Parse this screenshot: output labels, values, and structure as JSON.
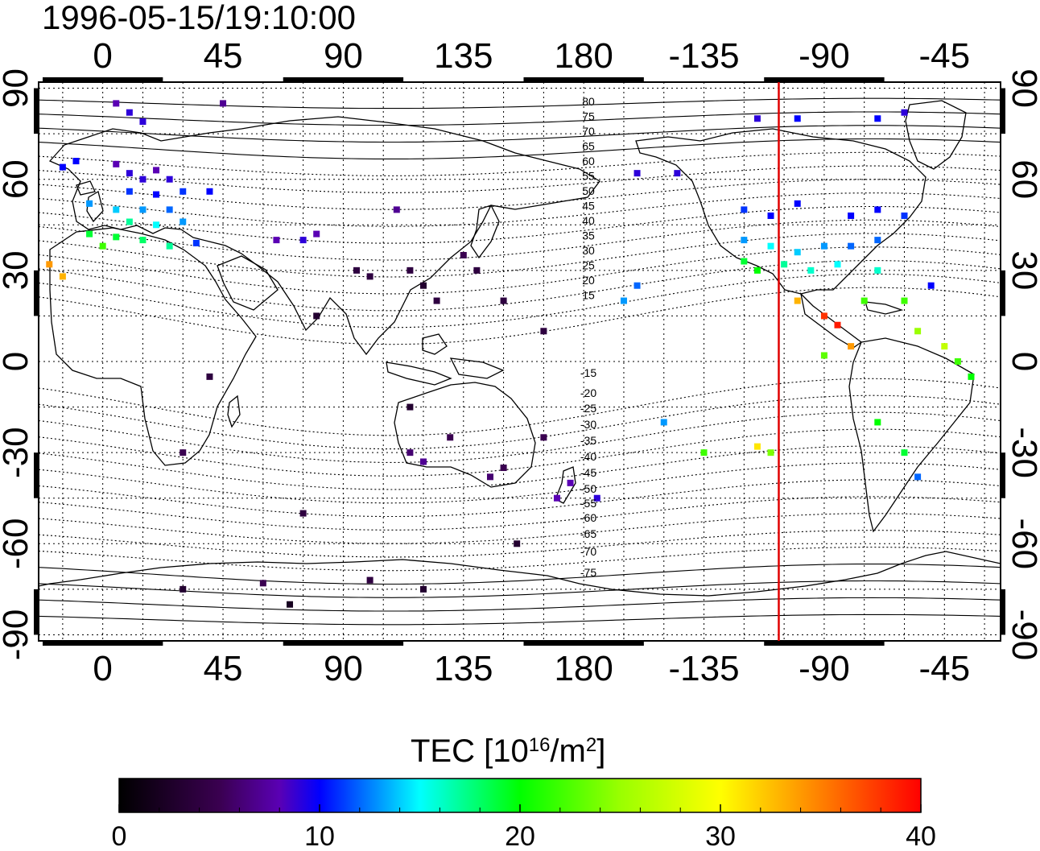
{
  "timestamp": "1996-05-15/19:10:00",
  "map": {
    "lon_ticks": [
      {
        "value": 0,
        "label": "0"
      },
      {
        "value": 45,
        "label": "45"
      },
      {
        "value": 90,
        "label": "90"
      },
      {
        "value": 135,
        "label": "135"
      },
      {
        "value": 180,
        "label": "180"
      },
      {
        "value": 225,
        "label": "-135"
      },
      {
        "value": 270,
        "label": "-90"
      },
      {
        "value": 315,
        "label": "-45"
      }
    ],
    "lat_ticks": [
      {
        "value": 90,
        "label": "90"
      },
      {
        "value": 60,
        "label": "60"
      },
      {
        "value": 30,
        "label": "30"
      },
      {
        "value": 0,
        "label": "0"
      },
      {
        "value": -30,
        "label": "-30"
      },
      {
        "value": -60,
        "label": "-60"
      },
      {
        "value": -90,
        "label": "-90"
      }
    ],
    "lon_range": [
      -24,
      336
    ],
    "lat_range": [
      -92,
      92
    ],
    "grid": true,
    "sunset_line_lon": -107,
    "contour_labels_north": [
      "80",
      "75",
      "70",
      "65",
      "60",
      "55",
      "50",
      "45",
      "40",
      "35",
      "30",
      "25",
      "20",
      "15"
    ],
    "contour_labels_south": [
      "-15",
      "-20",
      "-25",
      "-30",
      "-35",
      "-40",
      "-45",
      "-50",
      "-55",
      "-60",
      "-65",
      "-70",
      "-75"
    ]
  },
  "colorbar": {
    "title_prefix": "TEC  [10",
    "title_exp1": "16",
    "title_mid": "/m",
    "title_exp2": "2",
    "title_suffix": "]",
    "min": 0,
    "max": 40,
    "ticks": [
      {
        "value": 0,
        "label": "0"
      },
      {
        "value": 10,
        "label": "10"
      },
      {
        "value": 20,
        "label": "20"
      },
      {
        "value": 30,
        "label": "30"
      },
      {
        "value": 40,
        "label": "40"
      }
    ],
    "colors": [
      "#000000",
      "#3a0050",
      "#5a00b4",
      "#0000ff",
      "#00ffff",
      "#00ff00",
      "#ffff00",
      "#ff8000",
      "#ff0000"
    ]
  },
  "chart_data": {
    "type": "scatter",
    "title": "1996-05-15/19:10:00",
    "xlabel": "",
    "ylabel": "",
    "variable": "TEC [10^16/m^2]",
    "xlim": [
      -24,
      336
    ],
    "ylim": [
      -90,
      90
    ],
    "points": [
      {
        "lon": 5,
        "lat": 85,
        "tec": 8
      },
      {
        "lon": 10,
        "lat": 82,
        "tec": 9
      },
      {
        "lon": 15,
        "lat": 79,
        "tec": 9
      },
      {
        "lon": 45,
        "lat": 85,
        "tec": 7
      },
      {
        "lon": -15,
        "lat": 64,
        "tec": 10
      },
      {
        "lon": -10,
        "lat": 66,
        "tec": 10
      },
      {
        "lon": 5,
        "lat": 65,
        "tec": 8
      },
      {
        "lon": 10,
        "lat": 62,
        "tec": 9
      },
      {
        "lon": 15,
        "lat": 60,
        "tec": 9
      },
      {
        "lon": 20,
        "lat": 63,
        "tec": 8
      },
      {
        "lon": 25,
        "lat": 60,
        "tec": 9
      },
      {
        "lon": 10,
        "lat": 56,
        "tec": 11
      },
      {
        "lon": 20,
        "lat": 55,
        "tec": 10
      },
      {
        "lon": 30,
        "lat": 56,
        "tec": 11
      },
      {
        "lon": 40,
        "lat": 56,
        "tec": 10
      },
      {
        "lon": -5,
        "lat": 52,
        "tec": 13
      },
      {
        "lon": 5,
        "lat": 50,
        "tec": 14
      },
      {
        "lon": 15,
        "lat": 50,
        "tec": 13
      },
      {
        "lon": 25,
        "lat": 50,
        "tec": 12
      },
      {
        "lon": 10,
        "lat": 46,
        "tec": 17
      },
      {
        "lon": 20,
        "lat": 45,
        "tec": 15
      },
      {
        "lon": 30,
        "lat": 46,
        "tec": 13
      },
      {
        "lon": -5,
        "lat": 42,
        "tec": 19
      },
      {
        "lon": 5,
        "lat": 41,
        "tec": 19
      },
      {
        "lon": 15,
        "lat": 40,
        "tec": 18
      },
      {
        "lon": 25,
        "lat": 38,
        "tec": 17
      },
      {
        "lon": 35,
        "lat": 39,
        "tec": 11
      },
      {
        "lon": -20,
        "lat": 32,
        "tec": 34
      },
      {
        "lon": -15,
        "lat": 28,
        "tec": 33
      },
      {
        "lon": 0,
        "lat": 38,
        "tec": 22
      },
      {
        "lon": 65,
        "lat": 40,
        "tec": 8
      },
      {
        "lon": 75,
        "lat": 40,
        "tec": 9
      },
      {
        "lon": 80,
        "lat": 42,
        "tec": 8
      },
      {
        "lon": 95,
        "lat": 30,
        "tec": 4
      },
      {
        "lon": 100,
        "lat": 28,
        "tec": 4
      },
      {
        "lon": 110,
        "lat": 50,
        "tec": 7
      },
      {
        "lon": 115,
        "lat": 30,
        "tec": 4
      },
      {
        "lon": 120,
        "lat": 25,
        "tec": 3
      },
      {
        "lon": 125,
        "lat": 20,
        "tec": 4
      },
      {
        "lon": 135,
        "lat": 35,
        "tec": 5
      },
      {
        "lon": 140,
        "lat": 30,
        "tec": 4
      },
      {
        "lon": 150,
        "lat": 20,
        "tec": 4
      },
      {
        "lon": 165,
        "lat": 10,
        "tec": 4
      },
      {
        "lon": 80,
        "lat": 15,
        "tec": 3
      },
      {
        "lon": 40,
        "lat": -5,
        "tec": 4
      },
      {
        "lon": 30,
        "lat": -30,
        "tec": 5
      },
      {
        "lon": 115,
        "lat": -15,
        "tec": 3
      },
      {
        "lon": 115,
        "lat": -30,
        "tec": 6
      },
      {
        "lon": 120,
        "lat": -33,
        "tec": 7
      },
      {
        "lon": 130,
        "lat": -25,
        "tec": 5
      },
      {
        "lon": 145,
        "lat": -38,
        "tec": 6
      },
      {
        "lon": 150,
        "lat": -35,
        "tec": 5
      },
      {
        "lon": 165,
        "lat": -25,
        "tec": 5
      },
      {
        "lon": 175,
        "lat": -40,
        "tec": 8
      },
      {
        "lon": 170,
        "lat": -45,
        "tec": 8
      },
      {
        "lon": 185,
        "lat": -45,
        "tec": 9
      },
      {
        "lon": 75,
        "lat": -50,
        "tec": 4
      },
      {
        "lon": 155,
        "lat": -60,
        "tec": 3
      },
      {
        "lon": 30,
        "lat": -75,
        "tec": 3
      },
      {
        "lon": 60,
        "lat": -73,
        "tec": 5
      },
      {
        "lon": 70,
        "lat": -80,
        "tec": 2
      },
      {
        "lon": 100,
        "lat": -72,
        "tec": 4
      },
      {
        "lon": 120,
        "lat": -75,
        "tec": 3
      },
      {
        "lon": 200,
        "lat": 62,
        "tec": 9
      },
      {
        "lon": 215,
        "lat": 62,
        "tec": 9
      },
      {
        "lon": 245,
        "lat": 80,
        "tec": 9
      },
      {
        "lon": 260,
        "lat": 80,
        "tec": 10
      },
      {
        "lon": 290,
        "lat": 80,
        "tec": 10
      },
      {
        "lon": 300,
        "lat": 82,
        "tec": 9
      },
      {
        "lon": 240,
        "lat": 50,
        "tec": 11
      },
      {
        "lon": 250,
        "lat": 48,
        "tec": 10
      },
      {
        "lon": 260,
        "lat": 52,
        "tec": 10
      },
      {
        "lon": 280,
        "lat": 48,
        "tec": 10
      },
      {
        "lon": 290,
        "lat": 50,
        "tec": 10
      },
      {
        "lon": 300,
        "lat": 48,
        "tec": 11
      },
      {
        "lon": 240,
        "lat": 40,
        "tec": 13
      },
      {
        "lon": 250,
        "lat": 38,
        "tec": 15
      },
      {
        "lon": 260,
        "lat": 36,
        "tec": 14
      },
      {
        "lon": 270,
        "lat": 38,
        "tec": 13
      },
      {
        "lon": 280,
        "lat": 38,
        "tec": 12
      },
      {
        "lon": 290,
        "lat": 40,
        "tec": 12
      },
      {
        "lon": 240,
        "lat": 33,
        "tec": 19
      },
      {
        "lon": 245,
        "lat": 30,
        "tec": 20
      },
      {
        "lon": 255,
        "lat": 32,
        "tec": 17
      },
      {
        "lon": 265,
        "lat": 30,
        "tec": 16
      },
      {
        "lon": 275,
        "lat": 32,
        "tec": 15
      },
      {
        "lon": 290,
        "lat": 30,
        "tec": 16
      },
      {
        "lon": 260,
        "lat": 20,
        "tec": 33
      },
      {
        "lon": 270,
        "lat": 15,
        "tec": 38
      },
      {
        "lon": 275,
        "lat": 12,
        "tec": 39
      },
      {
        "lon": 280,
        "lat": 5,
        "tec": 34
      },
      {
        "lon": 270,
        "lat": 2,
        "tec": 23
      },
      {
        "lon": 285,
        "lat": 20,
        "tec": 22
      },
      {
        "lon": 300,
        "lat": 20,
        "tec": 22
      },
      {
        "lon": 305,
        "lat": 10,
        "tec": 25
      },
      {
        "lon": 315,
        "lat": 5,
        "tec": 27
      },
      {
        "lon": 320,
        "lat": 0,
        "tec": 22
      },
      {
        "lon": 325,
        "lat": -5,
        "tec": 20
      },
      {
        "lon": 290,
        "lat": -20,
        "tec": 20
      },
      {
        "lon": 300,
        "lat": -30,
        "tec": 19
      },
      {
        "lon": 305,
        "lat": -38,
        "tec": 12
      },
      {
        "lon": 200,
        "lat": 25,
        "tec": 12
      },
      {
        "lon": 195,
        "lat": 20,
        "tec": 13
      },
      {
        "lon": 210,
        "lat": -20,
        "tec": 13
      },
      {
        "lon": 225,
        "lat": -30,
        "tec": 22
      },
      {
        "lon": 245,
        "lat": -28,
        "tec": 31
      },
      {
        "lon": 250,
        "lat": -30,
        "tec": 24
      },
      {
        "lon": 310,
        "lat": 25,
        "tec": 10
      }
    ]
  }
}
